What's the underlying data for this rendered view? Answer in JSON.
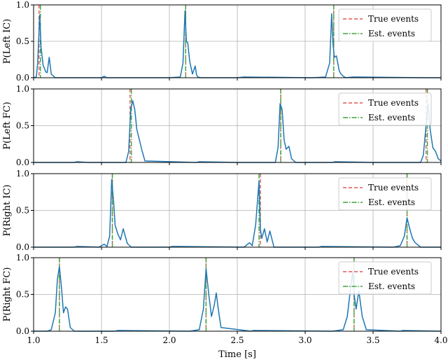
{
  "chart_data": [
    {
      "type": "line",
      "ylabel": "P(Left IC)",
      "ylim": [
        0,
        1
      ],
      "xlim": [
        1.0,
        4.0
      ],
      "yticks": [
        "0.0",
        "0.5",
        "1.0"
      ],
      "show_xticklabels": false,
      "grid": true,
      "legend": {
        "placement": "top-right",
        "entries": [
          "True events",
          "Est. events"
        ]
      },
      "true_events": [
        1.04,
        2.12,
        3.21
      ],
      "est_events": [
        1.05,
        2.12,
        3.21
      ],
      "series": [
        {
          "x": [
            1.0,
            1.02,
            1.03,
            1.045,
            1.055,
            1.07,
            1.09,
            1.1,
            1.115,
            1.13,
            1.16,
            1.5,
            1.52,
            1.54,
            1.8,
            2.0,
            2.08,
            2.1,
            2.115,
            2.125,
            2.135,
            2.15,
            2.17,
            2.19,
            2.2,
            2.21,
            2.23,
            2.5,
            2.55,
            3.05,
            3.15,
            3.18,
            3.195,
            3.205,
            3.215,
            3.23,
            3.25,
            3.26,
            3.28,
            3.3,
            3.35,
            3.9,
            4.0
          ],
          "y": [
            0.0,
            0.01,
            0.2,
            0.86,
            0.42,
            0.17,
            0.08,
            0.07,
            0.28,
            0.05,
            0.0,
            0.0,
            0.02,
            0.0,
            0.0,
            0.0,
            0.01,
            0.2,
            0.92,
            0.5,
            0.48,
            0.22,
            0.05,
            0.16,
            0.04,
            0.01,
            0.0,
            0.0,
            0.01,
            0.0,
            0.01,
            0.2,
            0.88,
            0.45,
            0.28,
            0.3,
            0.1,
            0.06,
            0.02,
            0.0,
            0.01,
            0.0,
            0.0
          ]
        }
      ]
    },
    {
      "type": "line",
      "ylabel": "P(Left FC)",
      "ylim": [
        0,
        1
      ],
      "xlim": [
        1.0,
        4.0
      ],
      "yticks": [
        "0.0",
        "0.5",
        "1.0"
      ],
      "show_xticklabels": false,
      "grid": true,
      "legend": {
        "placement": "top-right",
        "entries": [
          "True events",
          "Est. events"
        ]
      },
      "true_events": [
        1.71,
        2.82,
        3.89
      ],
      "est_events": [
        1.72,
        2.82,
        3.9
      ],
      "series": [
        {
          "x": [
            1.0,
            1.3,
            1.32,
            1.4,
            1.68,
            1.7,
            1.715,
            1.73,
            1.745,
            1.76,
            1.78,
            1.8,
            1.82,
            2.2,
            2.22,
            2.5,
            2.78,
            2.8,
            2.815,
            2.83,
            2.845,
            2.86,
            2.88,
            2.9,
            2.93,
            3.2,
            3.22,
            3.5,
            3.85,
            3.87,
            3.89,
            3.905,
            3.92,
            3.94,
            3.96,
            3.98,
            4.0
          ],
          "y": [
            0.0,
            0.0,
            0.01,
            0.0,
            0.0,
            0.15,
            0.72,
            0.84,
            0.72,
            0.45,
            0.3,
            0.15,
            0.02,
            0.0,
            0.01,
            0.0,
            0.0,
            0.2,
            0.8,
            0.72,
            0.3,
            0.18,
            0.22,
            0.05,
            0.0,
            0.0,
            0.01,
            0.0,
            0.0,
            0.1,
            0.5,
            0.8,
            0.45,
            0.2,
            0.15,
            0.05,
            0.02
          ]
        }
      ]
    },
    {
      "type": "line",
      "ylabel": "P(Right IC)",
      "ylim": [
        0,
        1
      ],
      "xlim": [
        1.0,
        4.0
      ],
      "yticks": [
        "0.0",
        "0.5",
        "1.0"
      ],
      "show_xticklabels": false,
      "grid": true,
      "legend": {
        "placement": "top-right",
        "entries": [
          "True events",
          "Est. events"
        ]
      },
      "true_events": [
        1.58,
        2.67,
        3.75
      ],
      "est_events": [
        1.58,
        2.66,
        3.75
      ],
      "series": [
        {
          "x": [
            1.0,
            1.3,
            1.32,
            1.48,
            1.52,
            1.54,
            1.56,
            1.575,
            1.59,
            1.6,
            1.62,
            1.64,
            1.66,
            1.69,
            1.72,
            2.0,
            2.02,
            2.55,
            2.59,
            2.61,
            2.635,
            2.66,
            2.67,
            2.68,
            2.7,
            2.72,
            2.74,
            2.77,
            3.1,
            3.12,
            3.65,
            3.7,
            3.73,
            3.75,
            3.77,
            3.79,
            3.81,
            3.85,
            4.0
          ],
          "y": [
            0.0,
            0.0,
            0.01,
            0.0,
            0.04,
            0.01,
            0.15,
            0.92,
            0.6,
            0.3,
            0.18,
            0.1,
            0.25,
            0.05,
            0.0,
            0.0,
            0.01,
            0.0,
            0.06,
            0.02,
            0.3,
            0.9,
            0.25,
            0.12,
            0.25,
            0.07,
            0.22,
            0.0,
            0.0,
            0.01,
            0.0,
            0.02,
            0.15,
            0.4,
            0.25,
            0.12,
            0.06,
            0.0,
            0.0
          ]
        }
      ]
    },
    {
      "type": "line",
      "ylabel": "P(Right FC)",
      "xlabel": "Time [s]",
      "ylim": [
        0,
        1
      ],
      "xlim": [
        1.0,
        4.0
      ],
      "yticks": [
        "0.0",
        "0.5",
        "1.0"
      ],
      "xticks": [
        "1.0",
        "1.5",
        "2.0",
        "2.5",
        "3.0",
        "3.5",
        "4.0"
      ],
      "show_xticklabels": true,
      "grid": true,
      "legend": {
        "placement": "top-right",
        "entries": [
          "True events",
          "Est. events"
        ]
      },
      "true_events": [
        1.19,
        2.27,
        3.36
      ],
      "est_events": [
        1.19,
        2.27,
        3.36
      ],
      "series": [
        {
          "x": [
            1.0,
            1.1,
            1.13,
            1.16,
            1.175,
            1.19,
            1.205,
            1.22,
            1.235,
            1.25,
            1.27,
            1.3,
            1.6,
            1.62,
            2.15,
            2.22,
            2.25,
            2.27,
            2.29,
            2.31,
            2.33,
            2.345,
            2.36,
            2.38,
            2.6,
            2.62,
            3.2,
            3.28,
            3.31,
            3.335,
            3.35,
            3.36,
            3.375,
            3.395,
            3.42,
            3.45,
            3.7,
            3.72,
            4.0
          ],
          "y": [
            0.0,
            0.0,
            0.02,
            0.25,
            0.7,
            0.88,
            0.6,
            0.25,
            0.33,
            0.3,
            0.05,
            0.0,
            0.0,
            0.01,
            0.0,
            0.02,
            0.3,
            0.85,
            0.5,
            0.2,
            0.35,
            0.52,
            0.3,
            0.05,
            0.0,
            0.01,
            0.0,
            0.02,
            0.2,
            0.6,
            0.82,
            0.5,
            0.3,
            0.55,
            0.2,
            0.02,
            0.0,
            0.01,
            0.0
          ]
        }
      ]
    }
  ],
  "colors": {
    "curve": "#1f77b4",
    "true_event": "#e45756",
    "est_event": "#3aa63a"
  }
}
